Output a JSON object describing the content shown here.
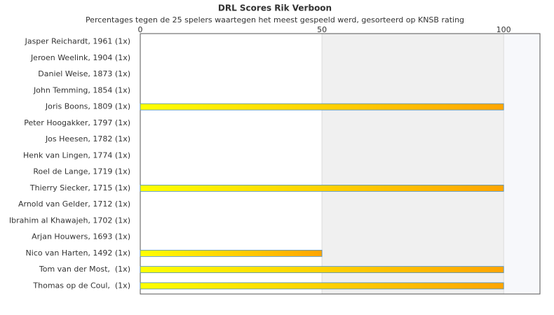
{
  "chart_data": {
    "type": "bar",
    "orientation": "horizontal",
    "title": "DRL Scores Rik Verboon",
    "subtitle": "Percentages tegen de 25 spelers waartegen het meest gespeeld werd, gesorteerd op KNSB rating",
    "categories": [
      "Jasper Reichardt, 1961 (1x)",
      "Jeroen Weelink, 1904 (1x)",
      "Daniel Weise, 1873 (1x)",
      "John Temming, 1854 (1x)",
      "Joris Boons, 1809 (1x)",
      "Peter Hoogakker, 1797 (1x)",
      "Jos Heesen, 1782 (1x)",
      "Henk van Lingen, 1774 (1x)",
      "Roel de Lange, 1719 (1x)",
      "Thierry Siecker, 1715 (1x)",
      "Arnold van Gelder, 1712 (1x)",
      "Ibrahim al Khawajeh, 1702 (1x)",
      "Arjan Houwers, 1693 (1x)",
      "Nico van Harten, 1492 (1x)",
      "Tom van der Most,  (1x)",
      "Thomas op de Coul,  (1x)"
    ],
    "values": [
      0,
      0,
      0,
      0,
      100,
      0,
      0,
      0,
      0,
      100,
      0,
      0,
      0,
      50,
      100,
      100
    ],
    "color": "#ffa500",
    "xlim": [
      0,
      110
    ],
    "xticks": [
      0,
      50,
      100
    ],
    "grid": true
  }
}
